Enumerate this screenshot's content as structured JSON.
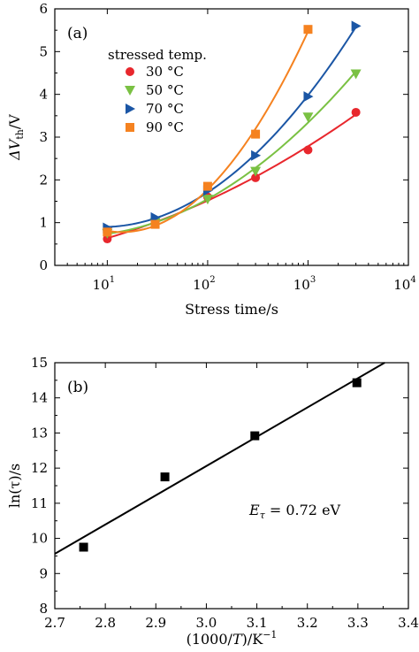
{
  "chart_data": [
    {
      "type": "scatter",
      "panel_label": "(a)",
      "xlabel": "Stress time/s",
      "ylabel_main": "ΔV",
      "ylabel_sub": "th",
      "ylabel_unit": "/V",
      "xscale": "log",
      "xlim": [
        3,
        10000
      ],
      "ylim": [
        0,
        6
      ],
      "x_ticks": [
        {
          "value": 10,
          "base": "10",
          "exp": "1"
        },
        {
          "value": 100,
          "base": "10",
          "exp": "2"
        },
        {
          "value": 1000,
          "base": "10",
          "exp": "3"
        },
        {
          "value": 10000,
          "base": "10",
          "exp": "4"
        }
      ],
      "y_ticks": [
        0,
        1,
        2,
        3,
        4,
        5,
        6
      ],
      "legend_title": "stressed temp.",
      "legend_position": "top-left",
      "series": [
        {
          "name": "30 °C",
          "marker": "circle",
          "color": "#e8272d",
          "x": [
            10,
            30,
            100,
            300,
            1000,
            3000
          ],
          "y": [
            0.62,
            1.0,
            1.6,
            2.05,
            2.7,
            3.58
          ]
        },
        {
          "name": "50 °C",
          "marker": "triangle-down",
          "color": "#7ac143",
          "x": [
            10,
            30,
            100,
            300,
            1000,
            3000
          ],
          "y": [
            0.75,
            1.0,
            1.55,
            2.2,
            3.47,
            4.48
          ]
        },
        {
          "name": "70 °C",
          "marker": "triangle-right",
          "color": "#1b56a5",
          "x": [
            10,
            30,
            100,
            300,
            1000,
            3000
          ],
          "y": [
            0.88,
            1.12,
            1.75,
            2.57,
            3.95,
            5.6
          ]
        },
        {
          "name": "90 °C",
          "marker": "square",
          "color": "#f58220",
          "x": [
            10,
            30,
            100,
            300,
            1000
          ],
          "y": [
            0.78,
            0.96,
            1.85,
            3.07,
            5.52
          ]
        }
      ]
    },
    {
      "type": "scatter",
      "panel_label": "(b)",
      "xlabel": "(1000/T)/K⁻¹",
      "xlabel_pre": "(1000/",
      "xlabel_var": "T",
      "xlabel_post": ")/K",
      "xlabel_sup": "−1",
      "ylabel": "ln(τ)/s",
      "xlim": [
        2.7,
        3.4
      ],
      "ylim": [
        8,
        15
      ],
      "x_ticks": [
        "2.7",
        "2.8",
        "2.9",
        "3.0",
        "3.1",
        "3.2",
        "3.3",
        "3.4"
      ],
      "y_ticks": [
        "8",
        "9",
        "10",
        "11",
        "12",
        "13",
        "14",
        "15"
      ],
      "annotation": "E_τ = 0.72 eV",
      "annotation_var": "E",
      "annotation_sub": "τ",
      "annotation_rest": " = 0.72 eV",
      "points": {
        "x": [
          2.757,
          2.918,
          3.096,
          3.298
        ],
        "y": [
          9.75,
          11.75,
          12.92,
          14.43
        ]
      },
      "fit_line": {
        "x": [
          2.7,
          3.353
        ],
        "y": [
          9.56,
          15.0
        ]
      }
    }
  ]
}
